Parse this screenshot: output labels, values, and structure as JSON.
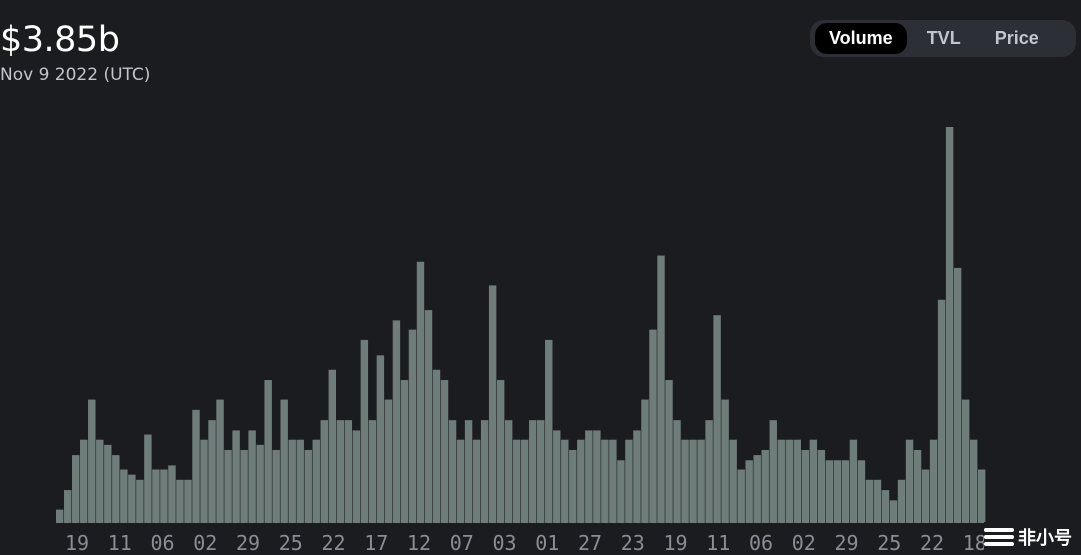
{
  "header": {
    "value": "$3.85b",
    "date": "Nov 9 2022 (UTC)"
  },
  "toggle": {
    "options": [
      "Volume",
      "TVL",
      "Price"
    ],
    "active": "Volume"
  },
  "watermark": "非小号",
  "colors": {
    "background": "#1b1c20",
    "bar": "#6f7d7a",
    "toggle_bg": "#2c2f36"
  },
  "chart_data": {
    "type": "bar",
    "title": "",
    "xlabel": "",
    "ylabel": "",
    "y_unit": "USD billions (estimated)",
    "ylim": [
      0,
      3.85
    ],
    "grid": false,
    "x_tick_labels": [
      "19",
      "11",
      "06",
      "02",
      "29",
      "25",
      "22",
      "17",
      "12",
      "07",
      "03",
      "01",
      "27",
      "23",
      "19",
      "11",
      "06",
      "02",
      "29",
      "25",
      "22",
      "18"
    ],
    "values": [
      0.13,
      0.32,
      0.66,
      0.81,
      1.2,
      0.81,
      0.76,
      0.66,
      0.52,
      0.47,
      0.42,
      0.86,
      0.52,
      0.52,
      0.56,
      0.42,
      0.42,
      1.1,
      0.81,
      1.0,
      1.2,
      0.71,
      0.9,
      0.71,
      0.9,
      0.76,
      1.39,
      0.71,
      1.2,
      0.81,
      0.81,
      0.71,
      0.81,
      1.0,
      1.49,
      1.0,
      1.0,
      0.9,
      1.78,
      1.0,
      1.63,
      1.2,
      1.97,
      1.39,
      1.88,
      2.54,
      2.07,
      1.49,
      1.39,
      1.0,
      0.81,
      1.0,
      0.81,
      1.0,
      2.31,
      1.39,
      1.0,
      0.81,
      0.81,
      1.0,
      1.0,
      1.78,
      0.9,
      0.81,
      0.71,
      0.81,
      0.9,
      0.9,
      0.81,
      0.81,
      0.61,
      0.81,
      0.9,
      1.2,
      1.88,
      2.6,
      1.39,
      1.0,
      0.81,
      0.81,
      0.81,
      1.0,
      2.02,
      1.2,
      0.81,
      0.52,
      0.61,
      0.66,
      0.71,
      1.0,
      0.81,
      0.81,
      0.81,
      0.71,
      0.81,
      0.71,
      0.61,
      0.61,
      0.61,
      0.81,
      0.61,
      0.42,
      0.42,
      0.32,
      0.22,
      0.42,
      0.81,
      0.71,
      0.52,
      0.81,
      2.17,
      3.85,
      2.48,
      1.2,
      0.81,
      0.52
    ]
  }
}
